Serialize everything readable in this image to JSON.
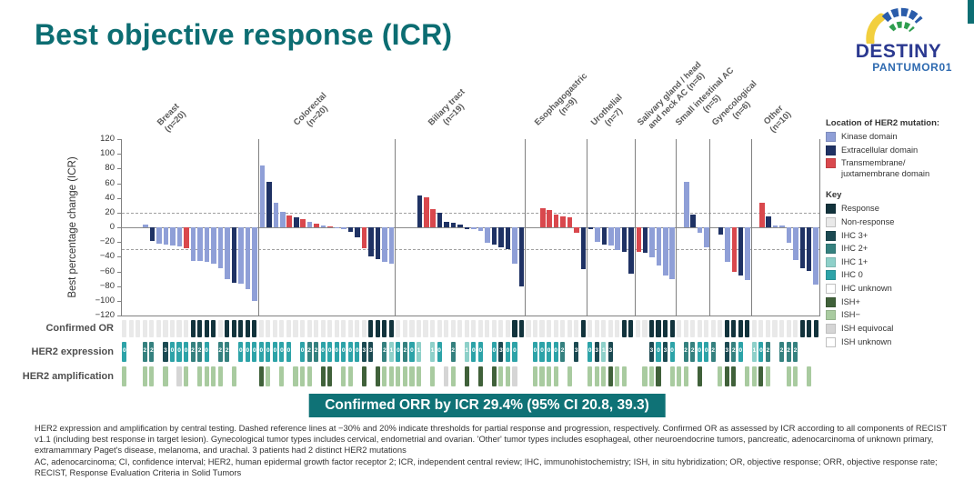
{
  "title": "Best objective response (ICR)",
  "logo": {
    "line1": "DESTINY",
    "line2": "PANTUMOR01"
  },
  "banner": "Confirmed ORR by ICR 29.4% (95% CI 20.8, 39.3)",
  "rows": {
    "confirmed_or": "Confirmed OR",
    "her2_expression": "HER2 expression",
    "her2_amplification": "HER2 amplification"
  },
  "footnote": {
    "main": "HER2 expression and amplification by central testing. Dashed reference lines at −30% and 20% indicate thresholds for partial response and progression, respectively. Confirmed OR as assessed by ICR according to all components of RECIST v1.1 (including best response in target lesion). Gynecological tumor types includes cervical, endometrial and ovarian. 'Other' tumor types includes esophageal, other neuroendocrine tumors, pancreatic, adenocarcinoma of unknown primary, extramammary Paget's disease, melanoma, and urachal. 3 patients had 2 distinct HER2 mutations",
    "abbreviations": "AC, adenocarcinoma; CI, confidence interval; HER2, human epidermal growth factor receptor 2; ICR, independent central review; IHC, immunohistochemistry; ISH, in situ hybridization; OR, objective response; ORR, objective response rate; RECIST, Response Evaluation Criteria in Solid Tumors"
  },
  "colors": {
    "kinase": "#8f9fd7",
    "extracellular": "#1f3264",
    "transmembrane": "#d9484d",
    "response": "#12333c",
    "non_response": "#e9e9e9",
    "ihc3": "#1c4a52",
    "ihc2": "#35817f",
    "ihc1": "#8ed0c9",
    "ihc0": "#2da3a8",
    "ihc_unknown": "#ffffff",
    "ish_pos": "#40613a",
    "ish_neg": "#a9cba0",
    "ish_eq": "#d5d5d5",
    "ish_unknown": "#ffffff",
    "accent_teal": "#0c6d72",
    "banner_bg": "#0f7276"
  },
  "legend_mutation": {
    "title": "Location of HER2 mutation:",
    "items": [
      {
        "lines": [
          "Kinase domain"
        ],
        "color": "kinase"
      },
      {
        "lines": [
          "Extracellular domain"
        ],
        "color": "extracellular"
      },
      {
        "lines": [
          "Transmembrane/",
          "juxtamembrane domain"
        ],
        "color": "transmembrane"
      }
    ]
  },
  "legend_key": {
    "title": "Key",
    "items": [
      {
        "lines": [
          "Response"
        ],
        "color": "response"
      },
      {
        "lines": [
          "Non-response"
        ],
        "color": "non_response"
      },
      {
        "lines": [
          "IHC 3+"
        ],
        "color": "ihc3"
      },
      {
        "lines": [
          "IHC 2+"
        ],
        "color": "ihc2"
      },
      {
        "lines": [
          "IHC 1+"
        ],
        "color": "ihc1"
      },
      {
        "lines": [
          "IHC 0"
        ],
        "color": "ihc0"
      },
      {
        "lines": [
          "IHC unknown"
        ],
        "color": "ihc_unknown"
      },
      {
        "lines": [
          "ISH+"
        ],
        "color": "ish_pos"
      },
      {
        "lines": [
          "ISH−"
        ],
        "color": "ish_neg"
      },
      {
        "lines": [
          "ISH equivocal"
        ],
        "color": "ish_eq"
      },
      {
        "lines": [
          "ISH unknown"
        ],
        "color": "ish_unknown"
      }
    ]
  },
  "chart_data": {
    "type": "bar",
    "title": "Best objective response (ICR)",
    "ylabel": "Best percentage change (ICR)",
    "ylim": [
      -120,
      120
    ],
    "yticks": [
      120,
      100,
      80,
      60,
      40,
      20,
      0,
      -20,
      -40,
      -60,
      -80,
      -100,
      -120
    ],
    "ref_lines": [
      20,
      -30
    ],
    "grid": false,
    "legend_position": "right",
    "groups": [
      {
        "name": "Breast",
        "n": 20,
        "label_lines": [
          "Breast"
        ],
        "n_label": "(n=20)",
        "bars": [
          [
            4,
            "kinase"
          ],
          [
            -19,
            "extracellular"
          ],
          [
            -22,
            "kinase"
          ],
          [
            -23,
            "kinase"
          ],
          [
            -25,
            "kinase"
          ],
          [
            -26,
            "kinase"
          ],
          [
            -28,
            "transmembrane"
          ],
          [
            -46,
            "kinase"
          ],
          [
            -46,
            "kinase"
          ],
          [
            -47,
            "kinase"
          ],
          [
            -49,
            "kinase"
          ],
          [
            -56,
            "kinase"
          ],
          [
            -71,
            "kinase"
          ],
          [
            -76,
            "extracellular"
          ],
          [
            -77,
            "kinase"
          ],
          [
            -84,
            "kinase"
          ],
          [
            -100,
            "kinase"
          ]
        ],
        "or": [
          0,
          0,
          0,
          0,
          0,
          0,
          0,
          0,
          0,
          0,
          1,
          1,
          1,
          1,
          0,
          1,
          1,
          1,
          1,
          1
        ],
        "ihc": [
          "0",
          "",
          "",
          "2",
          "2",
          "",
          "3",
          "0",
          "0",
          "0",
          "2",
          "2",
          "0",
          "",
          "2",
          "2",
          "",
          "0",
          "0",
          "0"
        ],
        "ish": [
          "neg",
          "",
          "",
          "neg",
          "neg",
          "",
          "neg",
          "",
          "eq",
          "neg",
          "",
          "neg",
          "neg",
          "neg",
          "neg",
          "",
          "neg",
          "",
          "",
          ""
        ]
      },
      {
        "name": "Colorectal",
        "n": 20,
        "label_lines": [
          "Colorectal"
        ],
        "n_label": "(n=20)",
        "bars": [
          [
            84,
            "kinase"
          ],
          [
            62,
            "extracellular"
          ],
          [
            34,
            "kinase"
          ],
          [
            21,
            "kinase"
          ],
          [
            16,
            "transmembrane"
          ],
          [
            13,
            "extracellular"
          ],
          [
            11,
            "transmembrane"
          ],
          [
            8,
            "kinase"
          ],
          [
            5,
            "transmembrane"
          ],
          [
            3,
            "kinase"
          ],
          [
            1,
            "transmembrane"
          ],
          [
            -1,
            "kinase"
          ],
          [
            -3,
            "kinase"
          ],
          [
            -6,
            "extracellular"
          ],
          [
            -13,
            "extracellular"
          ],
          [
            -28,
            "transmembrane"
          ],
          [
            -40,
            "extracellular"
          ],
          [
            -43,
            "extracellular"
          ],
          [
            -47,
            "kinase"
          ],
          [
            -50,
            "kinase"
          ]
        ],
        "or": [
          0,
          0,
          0,
          0,
          0,
          0,
          0,
          0,
          0,
          0,
          0,
          0,
          0,
          0,
          0,
          0,
          1,
          1,
          1,
          1
        ],
        "ihc": [
          "0",
          "0",
          "0",
          "0",
          "0",
          "",
          "0",
          "2",
          "2",
          "0",
          "0",
          "0",
          "0",
          "0",
          "0",
          "3",
          "3",
          "",
          "2",
          "1"
        ],
        "ish": [
          "pos",
          "neg",
          "",
          "neg",
          "",
          "neg",
          "neg",
          "neg",
          "",
          "pos",
          "pos",
          "",
          "neg",
          "neg",
          "",
          "pos",
          "",
          "pos",
          "neg",
          "neg"
        ]
      },
      {
        "name": "Biliary tract",
        "n": 19,
        "label_lines": [
          "Biliary tract"
        ],
        "n_label": "(n=19)",
        "bars": [
          [
            43,
            "extracellular"
          ],
          [
            41,
            "transmembrane"
          ],
          [
            25,
            "transmembrane"
          ],
          [
            20,
            "extracellular"
          ],
          [
            8,
            "extracellular"
          ],
          [
            6,
            "extracellular"
          ],
          [
            4,
            "extracellular"
          ],
          [
            -2,
            "extracellular"
          ],
          [
            -3,
            "kinase"
          ],
          [
            -5,
            "kinase"
          ],
          [
            -21,
            "kinase"
          ],
          [
            -24,
            "extracellular"
          ],
          [
            -27,
            "extracellular"
          ],
          [
            -30,
            "extracellular"
          ],
          [
            -50,
            "kinase"
          ],
          [
            -80,
            "extracellular"
          ]
        ],
        "or": [
          0,
          0,
          0,
          0,
          0,
          0,
          0,
          0,
          0,
          0,
          0,
          0,
          0,
          0,
          0,
          0,
          0,
          1,
          1
        ],
        "ihc": [
          "0",
          "2",
          "0",
          "1",
          "",
          "1",
          "0",
          "",
          "2",
          "",
          "1",
          "0",
          "0",
          "",
          "0",
          "3",
          "0",
          "0",
          ""
        ],
        "ish": [
          "neg",
          "neg",
          "neg",
          "neg",
          "",
          "neg",
          "",
          "eq",
          "neg",
          "",
          "pos",
          "",
          "pos",
          "",
          "pos",
          "neg",
          "neg",
          "eq",
          ""
        ]
      },
      {
        "name": "Esophagogastric",
        "n": 9,
        "label_lines": [
          "Esophagogastric"
        ],
        "n_label": "(n=9)",
        "bars": [
          [
            26,
            "transmembrane"
          ],
          [
            24,
            "transmembrane"
          ],
          [
            17,
            "transmembrane"
          ],
          [
            15,
            "transmembrane"
          ],
          [
            13,
            "transmembrane"
          ],
          [
            -7,
            "transmembrane"
          ],
          [
            -57,
            "extracellular"
          ]
        ],
        "or": [
          0,
          0,
          0,
          0,
          0,
          0,
          0,
          0,
          1
        ],
        "ihc": [
          "",
          "0",
          "0",
          "0",
          "0",
          "2",
          "",
          "3",
          ""
        ],
        "ish": [
          "",
          "neg",
          "neg",
          "neg",
          "neg",
          "",
          "neg",
          "",
          ""
        ]
      },
      {
        "name": "Urothelial",
        "n": 7,
        "label_lines": [
          "Urothelial"
        ],
        "n_label": "(n=7)",
        "bars": [
          [
            -3,
            "extracellular"
          ],
          [
            -20,
            "kinase"
          ],
          [
            -23,
            "extracellular"
          ],
          [
            -25,
            "kinase"
          ],
          [
            -31,
            "kinase"
          ],
          [
            -34,
            "extracellular"
          ],
          [
            -63,
            "extracellular"
          ]
        ],
        "or": [
          0,
          0,
          0,
          0,
          0,
          1,
          1
        ],
        "ihc": [
          "0",
          "3",
          "1",
          "3",
          "",
          "",
          ""
        ],
        "ish": [
          "neg",
          "neg",
          "neg",
          "pos",
          "neg",
          "neg",
          ""
        ]
      },
      {
        "name": "Salivary gland / head and neck AC",
        "n": 6,
        "label_lines": [
          "Salivary gland / head",
          "and neck AC (n=6)"
        ],
        "n_label": "",
        "bars": [
          [
            -33,
            "transmembrane"
          ],
          [
            -35,
            "extracellular"
          ],
          [
            -41,
            "kinase"
          ],
          [
            -52,
            "kinase"
          ],
          [
            -66,
            "kinase"
          ],
          [
            -70,
            "kinase"
          ]
        ],
        "or": [
          0,
          0,
          1,
          1,
          1,
          1
        ],
        "ihc": [
          "",
          "",
          "3",
          "0",
          "3",
          "0"
        ],
        "ish": [
          "",
          "neg",
          "neg",
          "pos",
          "",
          "neg"
        ]
      },
      {
        "name": "Small intestinal AC",
        "n": 5,
        "label_lines": [
          "Small intestinal AC"
        ],
        "n_label": "(n=5)",
        "bars": [
          [
            62,
            "kinase"
          ],
          [
            17,
            "extracellular"
          ],
          [
            -8,
            "kinase"
          ],
          [
            -27,
            "kinase"
          ]
        ],
        "or": [
          0,
          0,
          0,
          0,
          0
        ],
        "ihc": [
          "",
          "2",
          "2",
          "0",
          "0"
        ],
        "ish": [
          "neg",
          "neg",
          "",
          "pos",
          ""
        ]
      },
      {
        "name": "Gynecological",
        "n": 6,
        "label_lines": [
          "Gynecological"
        ],
        "n_label": "(n=6)",
        "bars": [
          [
            -10,
            "extracellular"
          ],
          [
            -47,
            "kinase"
          ],
          [
            -61,
            "transmembrane"
          ],
          [
            -66,
            "extracellular"
          ],
          [
            -72,
            "kinase"
          ]
        ],
        "or": [
          0,
          0,
          1,
          1,
          1,
          1
        ],
        "ihc": [
          "2",
          "",
          "3",
          "2",
          "0",
          ""
        ],
        "ish": [
          "",
          "neg",
          "pos",
          "pos",
          "",
          "neg"
        ]
      },
      {
        "name": "Other",
        "n": 10,
        "label_lines": [
          "Other"
        ],
        "n_label": "(n=10)",
        "bars": [
          [
            34,
            "transmembrane"
          ],
          [
            15,
            "extracellular"
          ],
          [
            3,
            "kinase"
          ],
          [
            2,
            "kinase"
          ],
          [
            -21,
            "kinase"
          ],
          [
            -45,
            "kinase"
          ],
          [
            -56,
            "extracellular"
          ],
          [
            -59,
            "extracellular"
          ],
          [
            -78,
            "kinase"
          ]
        ],
        "or": [
          0,
          0,
          0,
          0,
          0,
          0,
          0,
          1,
          1,
          1
        ],
        "ihc": [
          "1",
          "0",
          "2",
          "",
          "2",
          "2",
          "2",
          "",
          "",
          ""
        ],
        "ish": [
          "neg",
          "pos",
          "neg",
          "",
          "",
          "neg",
          "neg",
          "",
          "neg",
          ""
        ]
      }
    ]
  }
}
